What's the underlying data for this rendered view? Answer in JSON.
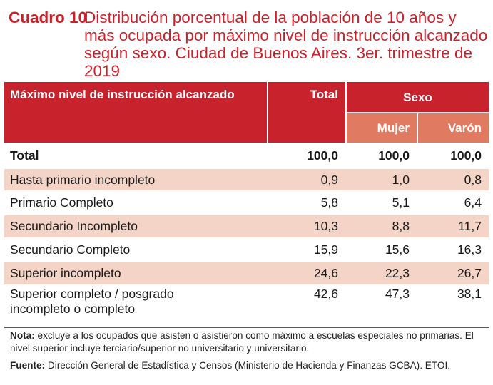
{
  "title": {
    "label": "Cuadro 10",
    "text": "Distribución porcentual de la población de 10 años y más ocupada por máximo nivel de instrucción alcanzado según sexo. Ciudad de Buenos Aires. 3er. trimestre de 2019"
  },
  "header": {
    "level": "Máximo nivel de instrucción alcanzado",
    "total": "Total",
    "sexo": "Sexo",
    "mujer": "Mujer",
    "varon": "Varón"
  },
  "rows": [
    {
      "label": "Total",
      "total": "100,0",
      "mujer": "100,0",
      "varon": "100,0"
    },
    {
      "label": "Hasta primario incompleto",
      "total": "0,9",
      "mujer": "1,0",
      "varon": "0,8"
    },
    {
      "label": "Primario Completo",
      "total": "5,8",
      "mujer": "5,1",
      "varon": "6,4"
    },
    {
      "label": "Secundario Incompleto",
      "total": "10,3",
      "mujer": "8,8",
      "varon": "11,7"
    },
    {
      "label": "Secundario Completo",
      "total": "15,9",
      "mujer": "15,6",
      "varon": "16,3"
    },
    {
      "label": "Superior incompleto",
      "total": "24,6",
      "mujer": "22,3",
      "varon": "26,7"
    },
    {
      "label": "Superior completo / posgrado incompleto o completo",
      "total": "42,6",
      "mujer": "47,3",
      "varon": "38,1"
    }
  ],
  "notes": {
    "nota_label": "Nota:",
    "nota_text": "excluye a los ocupados que asisten o asistieron como máximo a escuelas especiales no primarias. El nivel superior incluye terciario/superior no universitario y universitario.",
    "fuente_label": "Fuente:",
    "fuente_text": "Dirección General de Estadística y Censos (Ministerio de Hacienda y Finanzas GCBA). ETOI."
  }
}
